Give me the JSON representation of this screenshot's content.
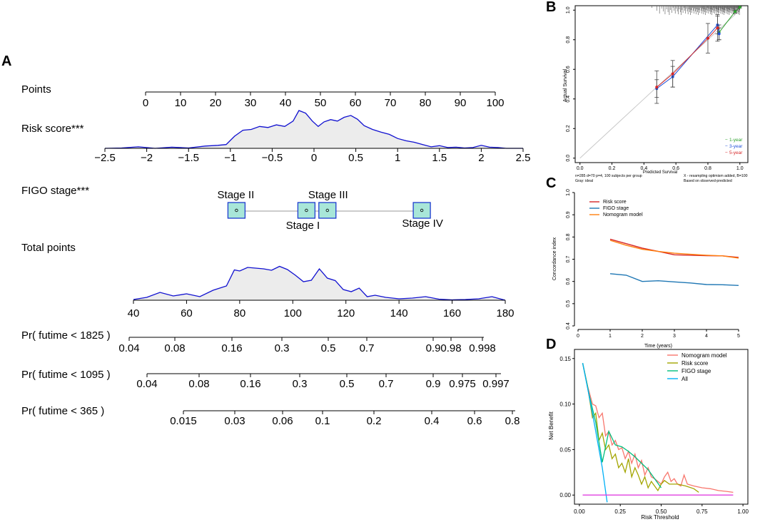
{
  "panel_labels": {
    "a": "A",
    "b": "B",
    "c": "C",
    "d": "D"
  },
  "chart_data": [
    {
      "panel": "A",
      "type": "nomogram",
      "rows": [
        {
          "label": "Points",
          "ticks": [
            0,
            10,
            20,
            30,
            40,
            50,
            60,
            70,
            80,
            90,
            100
          ],
          "tick_labels": [
            "0",
            "10",
            "20",
            "30",
            "40",
            "50",
            "60",
            "70",
            "80",
            "90",
            "100"
          ]
        },
        {
          "label": "Risk score***",
          "ticks": [
            -2.5,
            -2,
            -1.5,
            -1,
            -0.5,
            0,
            0.5,
            1,
            1.5,
            2,
            2.5
          ],
          "tick_labels": [
            "−2.5",
            "−2",
            "−1.5",
            "−1",
            "−0.5",
            "0",
            "0.5",
            "1",
            "1.5",
            "2",
            "2.5"
          ],
          "density_x": [
            -2.5,
            -2.3,
            -2.1,
            -1.9,
            -1.7,
            -1.5,
            -1.3,
            -1.15,
            -1.05,
            -0.95,
            -0.85,
            -0.75,
            -0.65,
            -0.55,
            -0.45,
            -0.35,
            -0.25,
            -0.18,
            -0.1,
            -0.02,
            0.05,
            0.12,
            0.2,
            0.28,
            0.36,
            0.44,
            0.52,
            0.6,
            0.7,
            0.8,
            0.9,
            1.0,
            1.1,
            1.2,
            1.3,
            1.4,
            1.5,
            1.6,
            1.7,
            1.8,
            1.9,
            2.0,
            2.1,
            2.2,
            2.3,
            2.5
          ],
          "density_y": [
            0.0,
            0.01,
            0.04,
            0.0,
            0.03,
            0.01,
            0.06,
            0.08,
            0.1,
            0.32,
            0.48,
            0.5,
            0.58,
            0.55,
            0.62,
            0.58,
            0.72,
            1.0,
            0.93,
            0.72,
            0.58,
            0.7,
            0.76,
            0.72,
            0.82,
            0.87,
            0.77,
            0.6,
            0.5,
            0.43,
            0.37,
            0.26,
            0.2,
            0.16,
            0.1,
            0.04,
            0.07,
            0.02,
            0.03,
            0.01,
            0.02,
            0.08,
            0.03,
            0.02,
            0.0,
            0.0
          ]
        },
        {
          "label": "FIGO stage***",
          "levels": [
            {
              "name": "Stage II",
              "value": 26
            },
            {
              "name": "Stage I",
              "value": 46
            },
            {
              "name": "Stage III",
              "value": 52
            },
            {
              "name": "Stage IV",
              "value": 79
            }
          ]
        },
        {
          "label": "Total points",
          "ticks": [
            40,
            60,
            80,
            100,
            120,
            140,
            160,
            180
          ],
          "tick_labels": [
            "40",
            "60",
            "80",
            "100",
            "120",
            "140",
            "160",
            "180"
          ],
          "density_x": [
            40,
            45,
            50,
            55,
            60,
            65,
            70,
            75,
            78,
            80,
            83,
            86,
            89,
            92,
            95,
            98,
            101,
            104,
            107,
            110,
            113,
            116,
            119,
            122,
            125,
            128,
            131,
            135,
            140,
            145,
            150,
            155,
            160,
            165,
            170,
            175,
            180
          ],
          "density_y": [
            0.02,
            0.08,
            0.22,
            0.12,
            0.18,
            0.1,
            0.28,
            0.4,
            0.85,
            0.82,
            0.92,
            0.9,
            0.88,
            0.84,
            0.95,
            0.86,
            0.7,
            0.52,
            0.56,
            0.88,
            0.62,
            0.55,
            0.3,
            0.24,
            0.34,
            0.1,
            0.14,
            0.08,
            0.04,
            0.06,
            0.1,
            0.03,
            0.01,
            0.02,
            0.04,
            0.1,
            0.0
          ]
        },
        {
          "label": "Pr( futime < 1825 )",
          "tick_labels": [
            "0.04",
            "0.08",
            "0.16",
            "0.3",
            "0.5",
            "0.7",
            "0.9",
            "0.98",
            "0.998"
          ]
        },
        {
          "label": "Pr( futime < 1095 )",
          "tick_labels": [
            "0.04",
            "0.08",
            "0.16",
            "0.3",
            "0.5",
            "0.7",
            "0.9",
            "0.975",
            "0.997"
          ]
        },
        {
          "label": "Pr( futime < 365 )",
          "tick_labels": [
            "0.015",
            "0.03",
            "0.06",
            "0.1",
            "0.2",
            "0.4",
            "0.6",
            "0.8"
          ]
        }
      ]
    },
    {
      "panel": "B",
      "type": "calibration",
      "xlabel": "Predicted   Survival",
      "ylabel": "Actual Survival",
      "xlim": [
        0,
        1
      ],
      "ylim": [
        0,
        1
      ],
      "ticks": [
        "0.0",
        "0.2",
        "0.4",
        "0.6",
        "0.8",
        "1.0"
      ],
      "tick_values": [
        0,
        0.2,
        0.4,
        0.6,
        0.8,
        1.0
      ],
      "series": [
        {
          "name": "1-year",
          "color": "#2ca02c",
          "x": [
            0.87,
            0.97,
            1.0
          ],
          "y": [
            0.85,
            0.99,
            1.02
          ],
          "err": [
            0.05,
            0.01,
            0.005
          ]
        },
        {
          "name": "3-year",
          "color": "#1f4fd8",
          "x": [
            0.48,
            0.58,
            0.86,
            0.87
          ],
          "y": [
            0.47,
            0.55,
            0.9,
            0.84
          ],
          "err": [
            0.06,
            0.07,
            0.06,
            0.04
          ]
        },
        {
          "name": "5-year",
          "color": "#d62728",
          "x": [
            0.48,
            0.58,
            0.8,
            0.86
          ],
          "y": [
            0.48,
            0.57,
            0.81,
            0.88
          ],
          "err": [
            0.11,
            0.09,
            0.1,
            0.09
          ]
        }
      ],
      "legend": [
        "1-year",
        "3-year",
        "5-year"
      ],
      "footnote_left_1": "n=285 d=70 p=4, 100 subjects per group",
      "footnote_left_2": "Gray: ideal",
      "footnote_right_1": "X - resampling optimism added, B=100",
      "footnote_right_2": "Based on observed-predicted"
    },
    {
      "panel": "C",
      "type": "line",
      "xlabel": "Time (years)",
      "ylabel": "Concordance index",
      "xlim": [
        0,
        5
      ],
      "ylim": [
        0.4,
        1.0
      ],
      "x_ticks": [
        "0",
        "1",
        "2",
        "3",
        "4",
        "5"
      ],
      "x_tick_values": [
        0,
        1,
        2,
        3,
        4,
        5
      ],
      "y_ticks": [
        "0.4",
        "0.5",
        "0.6",
        "0.7",
        "0.8",
        "0.9",
        "1.0"
      ],
      "y_tick_values": [
        0.4,
        0.5,
        0.6,
        0.7,
        0.8,
        0.9,
        1.0
      ],
      "series": [
        {
          "name": "Risk score",
          "color": "#d62728",
          "x": [
            1,
            1.5,
            2,
            2.5,
            3,
            3.5,
            4,
            4.5,
            5
          ],
          "y": [
            0.79,
            0.77,
            0.75,
            0.735,
            0.72,
            0.718,
            0.716,
            0.715,
            0.708
          ]
        },
        {
          "name": "FIGO stage",
          "color": "#1f77b4",
          "x": [
            1,
            1.5,
            2,
            2.5,
            3,
            3.5,
            4,
            4.5,
            5
          ],
          "y": [
            0.635,
            0.628,
            0.6,
            0.603,
            0.598,
            0.593,
            0.586,
            0.585,
            0.582
          ]
        },
        {
          "name": "Nomogram model",
          "color": "#ff7f0e",
          "x": [
            1,
            1.5,
            2,
            2.5,
            3,
            3.5,
            4,
            4.5,
            5
          ],
          "y": [
            0.785,
            0.763,
            0.745,
            0.735,
            0.727,
            0.722,
            0.718,
            0.715,
            0.705
          ]
        }
      ]
    },
    {
      "panel": "D",
      "type": "line",
      "xlabel": "Risk Threshold",
      "ylabel": "Net Benefit",
      "xlim": [
        -0.03,
        1.03
      ],
      "ylim": [
        -0.01,
        0.16
      ],
      "x_ticks": [
        "0.00",
        "0.25",
        "0.50",
        "0.75",
        "1.00"
      ],
      "x_tick_values": [
        0,
        0.25,
        0.5,
        0.75,
        1.0
      ],
      "y_ticks": [
        "0.00",
        "0.05",
        "0.10",
        "0.15"
      ],
      "y_tick_values": [
        0,
        0.05,
        0.1,
        0.15
      ],
      "series": [
        {
          "name": "Nomogram model",
          "color": "#f8766d",
          "x": [
            0.02,
            0.05,
            0.08,
            0.1,
            0.12,
            0.14,
            0.16,
            0.18,
            0.2,
            0.22,
            0.24,
            0.26,
            0.28,
            0.3,
            0.32,
            0.34,
            0.36,
            0.38,
            0.4,
            0.42,
            0.44,
            0.46,
            0.48,
            0.5,
            0.52,
            0.54,
            0.56,
            0.58,
            0.6,
            0.62,
            0.64,
            0.66,
            0.7,
            0.75,
            0.8,
            0.85,
            0.9,
            0.94
          ],
          "y": [
            0.145,
            0.12,
            0.1,
            0.098,
            0.085,
            0.09,
            0.065,
            0.07,
            0.055,
            0.06,
            0.05,
            0.052,
            0.04,
            0.048,
            0.035,
            0.045,
            0.03,
            0.038,
            0.022,
            0.03,
            0.02,
            0.018,
            0.015,
            0.012,
            0.02,
            0.025,
            0.015,
            0.018,
            0.012,
            0.01,
            0.022,
            0.012,
            0.01,
            0.008,
            0.007,
            0.005,
            0.004,
            0.003
          ]
        },
        {
          "name": "Risk score",
          "color": "#a3a500",
          "x": [
            0.02,
            0.05,
            0.08,
            0.1,
            0.12,
            0.14,
            0.16,
            0.18,
            0.2,
            0.22,
            0.24,
            0.26,
            0.28,
            0.3,
            0.32,
            0.34,
            0.36,
            0.38,
            0.4,
            0.42,
            0.44,
            0.46,
            0.48,
            0.5,
            0.52,
            0.55,
            0.6,
            0.65,
            0.7,
            0.73
          ],
          "y": [
            0.145,
            0.12,
            0.085,
            0.09,
            0.06,
            0.068,
            0.05,
            0.055,
            0.04,
            0.045,
            0.03,
            0.035,
            0.025,
            0.04,
            0.02,
            0.03,
            0.022,
            0.012,
            0.02,
            0.008,
            0.015,
            0.01,
            0.005,
            0.012,
            0.016,
            0.012,
            0.012,
            0.01,
            0.007,
            0.003
          ]
        },
        {
          "name": "FIGO stage",
          "color": "#00bf7d",
          "x": [
            0.02,
            0.06,
            0.1,
            0.14,
            0.18,
            0.22,
            0.26,
            0.3,
            0.34,
            0.38,
            0.42,
            0.46,
            0.5
          ],
          "y": [
            0.145,
            0.11,
            0.08,
            0.036,
            0.07,
            0.055,
            0.053,
            0.048,
            0.042,
            0.035,
            0.028,
            0.018,
            0.008
          ]
        },
        {
          "name": "All",
          "color": "#00b0f6",
          "x": [
            0.02,
            0.05,
            0.08,
            0.11,
            0.14,
            0.17
          ],
          "y": [
            0.145,
            0.118,
            0.09,
            0.06,
            0.03,
            -0.008
          ]
        },
        {
          "name": "None",
          "color": "#e040e0",
          "legend": false,
          "x": [
            0.02,
            0.94
          ],
          "y": [
            0.0,
            0.0
          ]
        }
      ],
      "legend": [
        "Nomogram model",
        "Risk score",
        "FIGO stage",
        "All"
      ]
    }
  ]
}
